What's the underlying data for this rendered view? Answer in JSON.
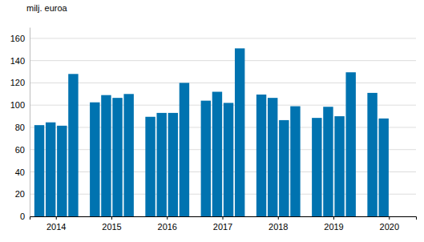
{
  "chart_data": {
    "type": "bar",
    "ylabel": "milj. euroa",
    "categories": [
      "2014",
      "2015",
      "2016",
      "2017",
      "2018",
      "2019",
      "2020"
    ],
    "series": [
      {
        "color": "#0073b0",
        "values": [
          82,
          102.5,
          89.5,
          104,
          109.5,
          88.5,
          111
        ]
      },
      {
        "color": "#0073b0",
        "values": [
          84.5,
          109,
          93,
          112,
          106.5,
          98.5,
          88
        ]
      },
      {
        "color": "#0073b0",
        "values": [
          81.5,
          106.5,
          93,
          102,
          86.5,
          90,
          null
        ]
      },
      {
        "color": "#0073b0",
        "values": [
          128,
          110,
          120,
          151,
          99,
          129.5,
          null
        ]
      }
    ],
    "ylim": [
      0,
      170
    ],
    "yticks": [
      0,
      20,
      40,
      60,
      80,
      100,
      120,
      140,
      160
    ],
    "grid": true
  }
}
